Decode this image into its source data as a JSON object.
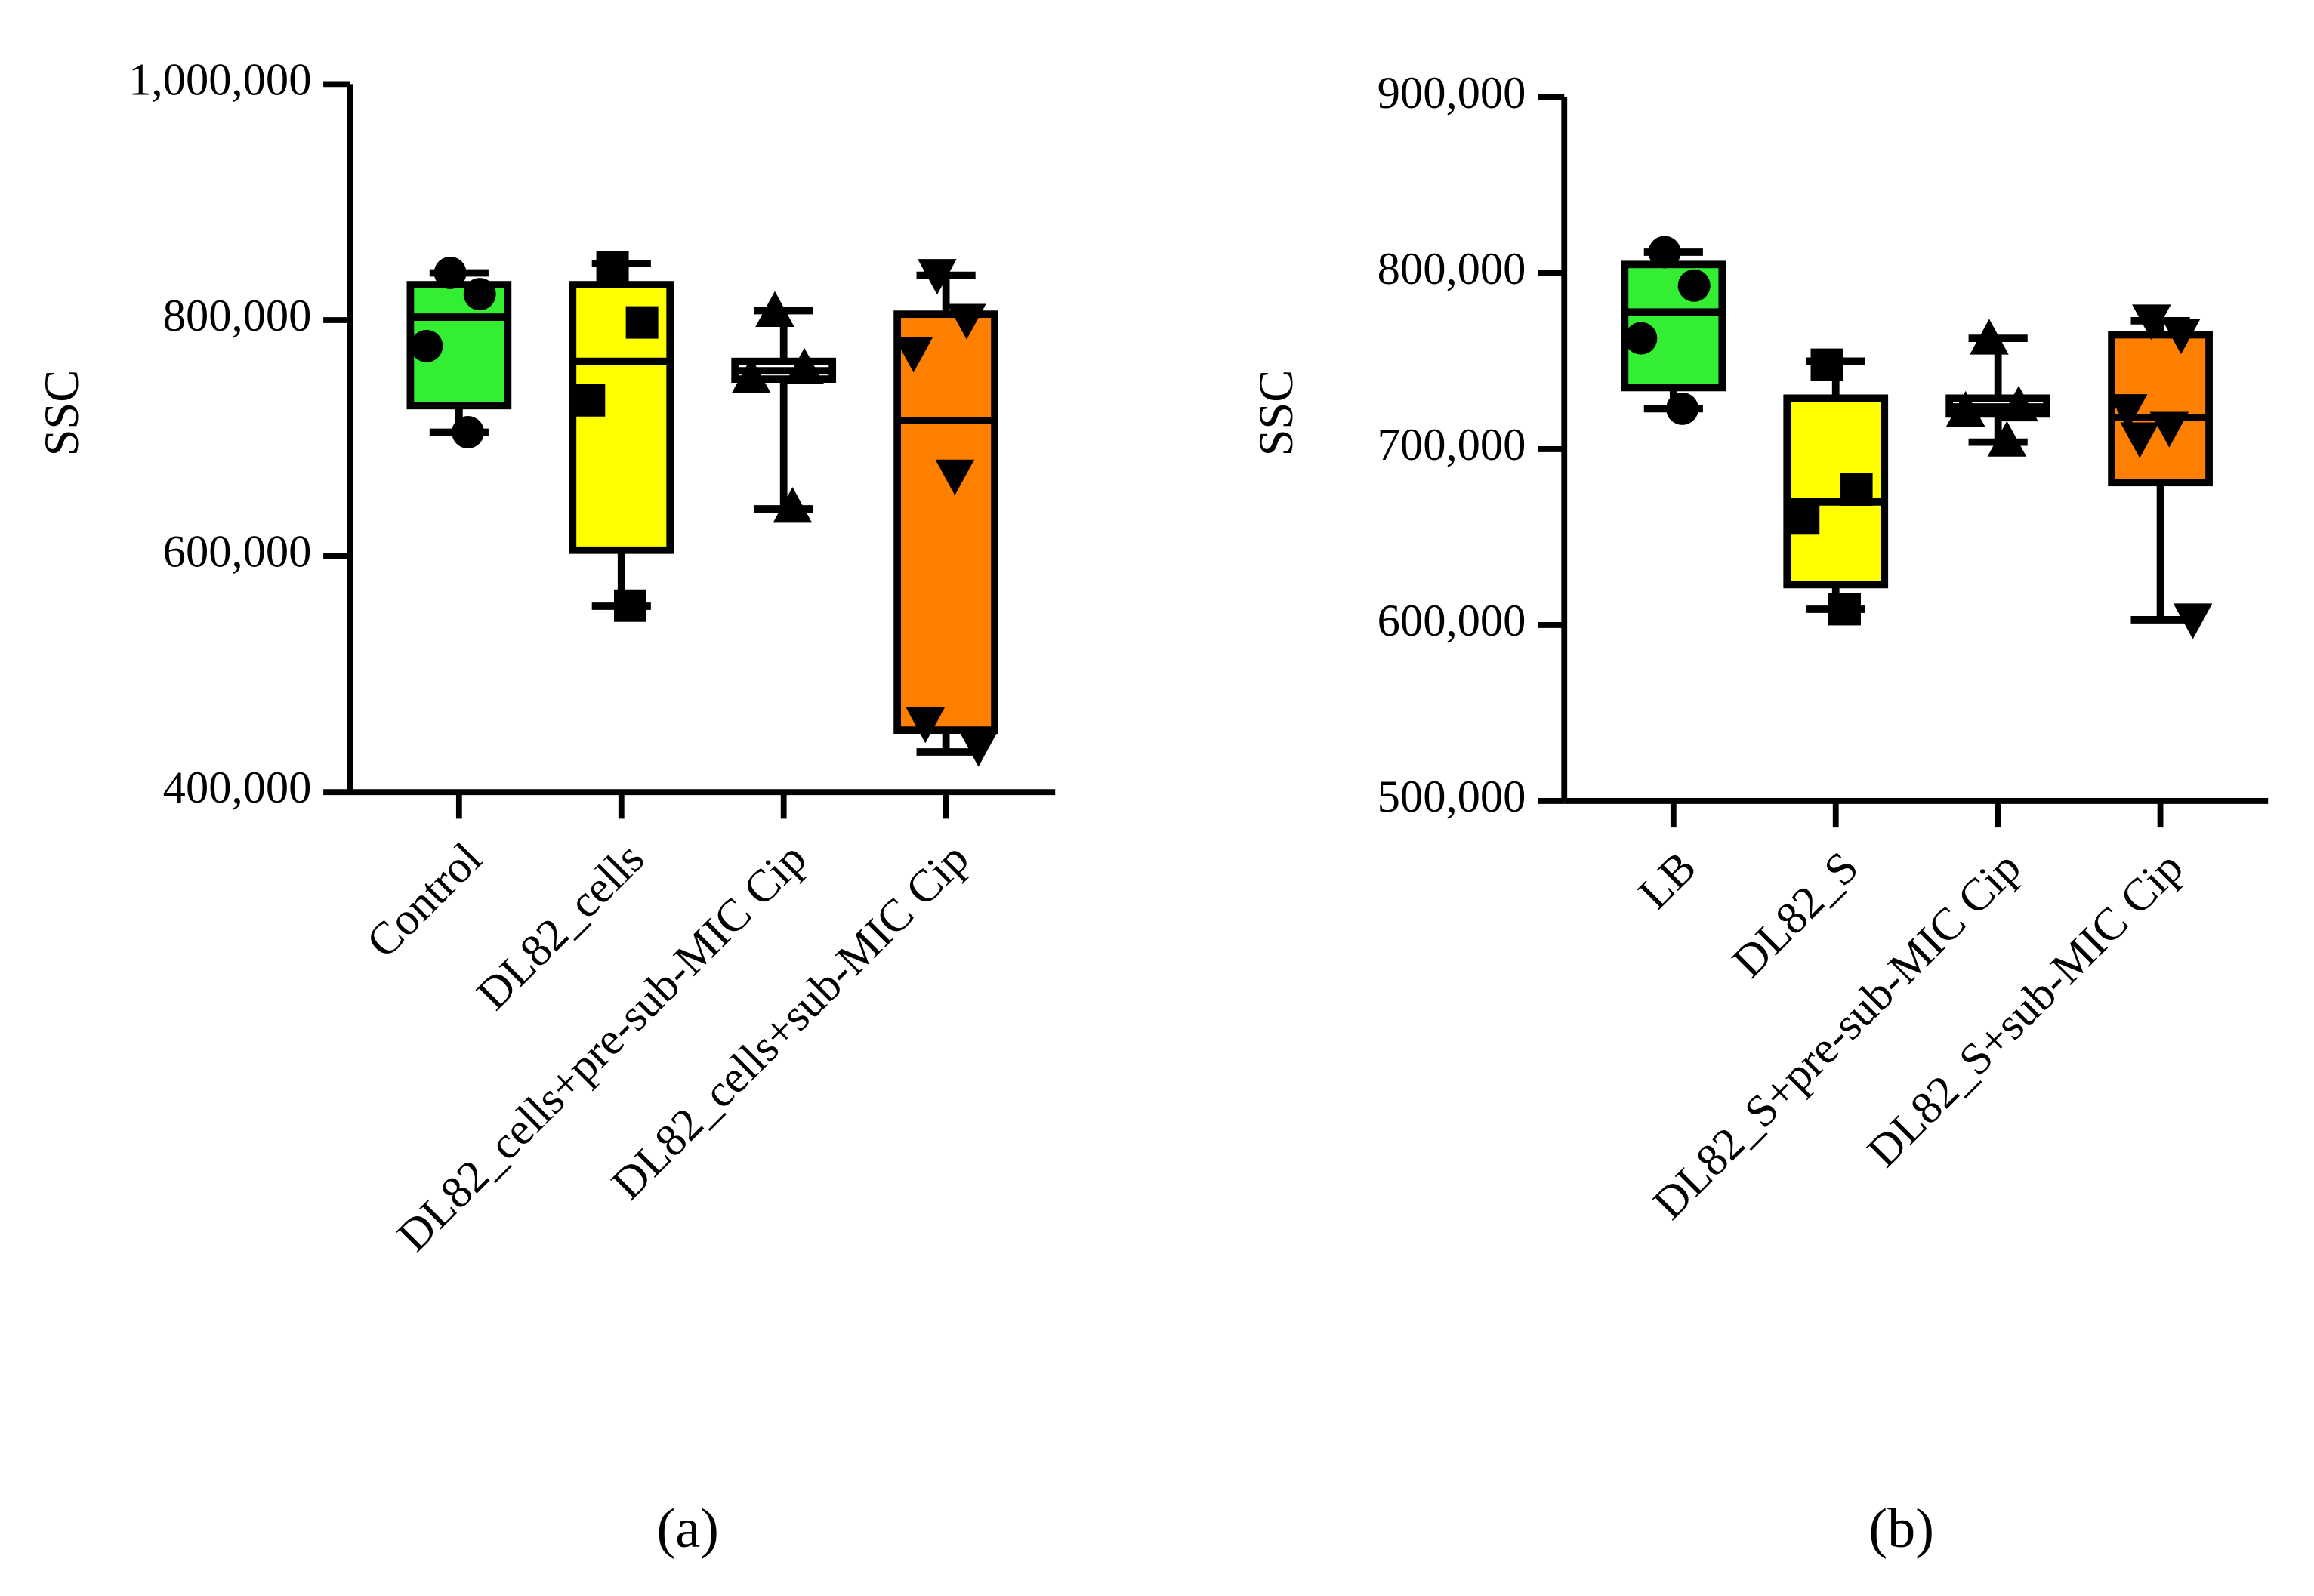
{
  "chart_data": [
    {
      "type": "box",
      "panel_label": "(a)",
      "ylabel": "SSC",
      "categories": [
        "Control",
        "DL82_cells",
        "DL82_cells+pre-sub-MIC Cip",
        "DL82_cells+sub-MIC Cip"
      ],
      "colors": [
        "#33ee33",
        "#ffff00",
        "#ffffff",
        "#ff8000"
      ],
      "markers": [
        "circle",
        "square",
        "triangle-up",
        "triangle-down"
      ],
      "boxes": [
        {
          "min": 705000,
          "q1": 727500,
          "median": 802500,
          "q3": 830000,
          "max": 840000,
          "points": [
            840000,
            822000,
            778000,
            705000
          ]
        },
        {
          "min": 557500,
          "q1": 605000,
          "median": 765000,
          "q3": 830000,
          "max": 848000,
          "points": [
            845000,
            798000,
            732000,
            558000
          ]
        },
        {
          "min": 640000,
          "q1": 750000,
          "median": 757000,
          "q3": 765000,
          "max": 808000,
          "points": [
            808000,
            760000,
            752000,
            642000
          ]
        },
        {
          "min": 434000,
          "q1": 452500,
          "median": 715000,
          "q3": 805000,
          "max": 838000,
          "points": [
            838000,
            800000,
            772000,
            668000,
            458000,
            438000
          ]
        }
      ],
      "ylim": [
        400000,
        1000000
      ],
      "yticks": [
        {
          "value": 400000,
          "label": "400,000"
        },
        {
          "value": 600000,
          "label": "600,000"
        },
        {
          "value": 800000,
          "label": "800,000"
        },
        {
          "value": 1000000,
          "label": "1,000,000"
        }
      ]
    },
    {
      "type": "box",
      "panel_label": "(b)",
      "ylabel": "SSC",
      "categories": [
        "LB",
        "DL82_S",
        "DL82_S+pre-sub-MIC Cip",
        "DL82_S+sub-MIC Cip"
      ],
      "colors": [
        "#33ee33",
        "#ffff00",
        "#ffffff",
        "#ff8000"
      ],
      "markers": [
        "circle",
        "square",
        "triangle-up",
        "triangle-down"
      ],
      "boxes": [
        {
          "min": 723000,
          "q1": 735000,
          "median": 778000,
          "q3": 805000,
          "max": 812000,
          "points": [
            812000,
            793000,
            763000,
            723000
          ]
        },
        {
          "min": 609000,
          "q1": 623000,
          "median": 670000,
          "q3": 729000,
          "max": 750000,
          "points": [
            748000,
            677000,
            661000,
            609000
          ]
        },
        {
          "min": 704000,
          "q1": 720000,
          "median": 724000,
          "q3": 729000,
          "max": 763000,
          "points": [
            763000,
            725000,
            722000,
            705000
          ]
        },
        {
          "min": 603000,
          "q1": 681000,
          "median": 718000,
          "q3": 765000,
          "max": 773000,
          "points": [
            773000,
            765000,
            722000,
            712000,
            706000,
            603000
          ]
        }
      ],
      "ylim": [
        500000,
        900000
      ],
      "yticks": [
        {
          "value": 500000,
          "label": "500,000"
        },
        {
          "value": 600000,
          "label": "600,000"
        },
        {
          "value": 700000,
          "label": "700,000"
        },
        {
          "value": 800000,
          "label": "800,000"
        },
        {
          "value": 900000,
          "label": "900,000"
        }
      ]
    }
  ]
}
